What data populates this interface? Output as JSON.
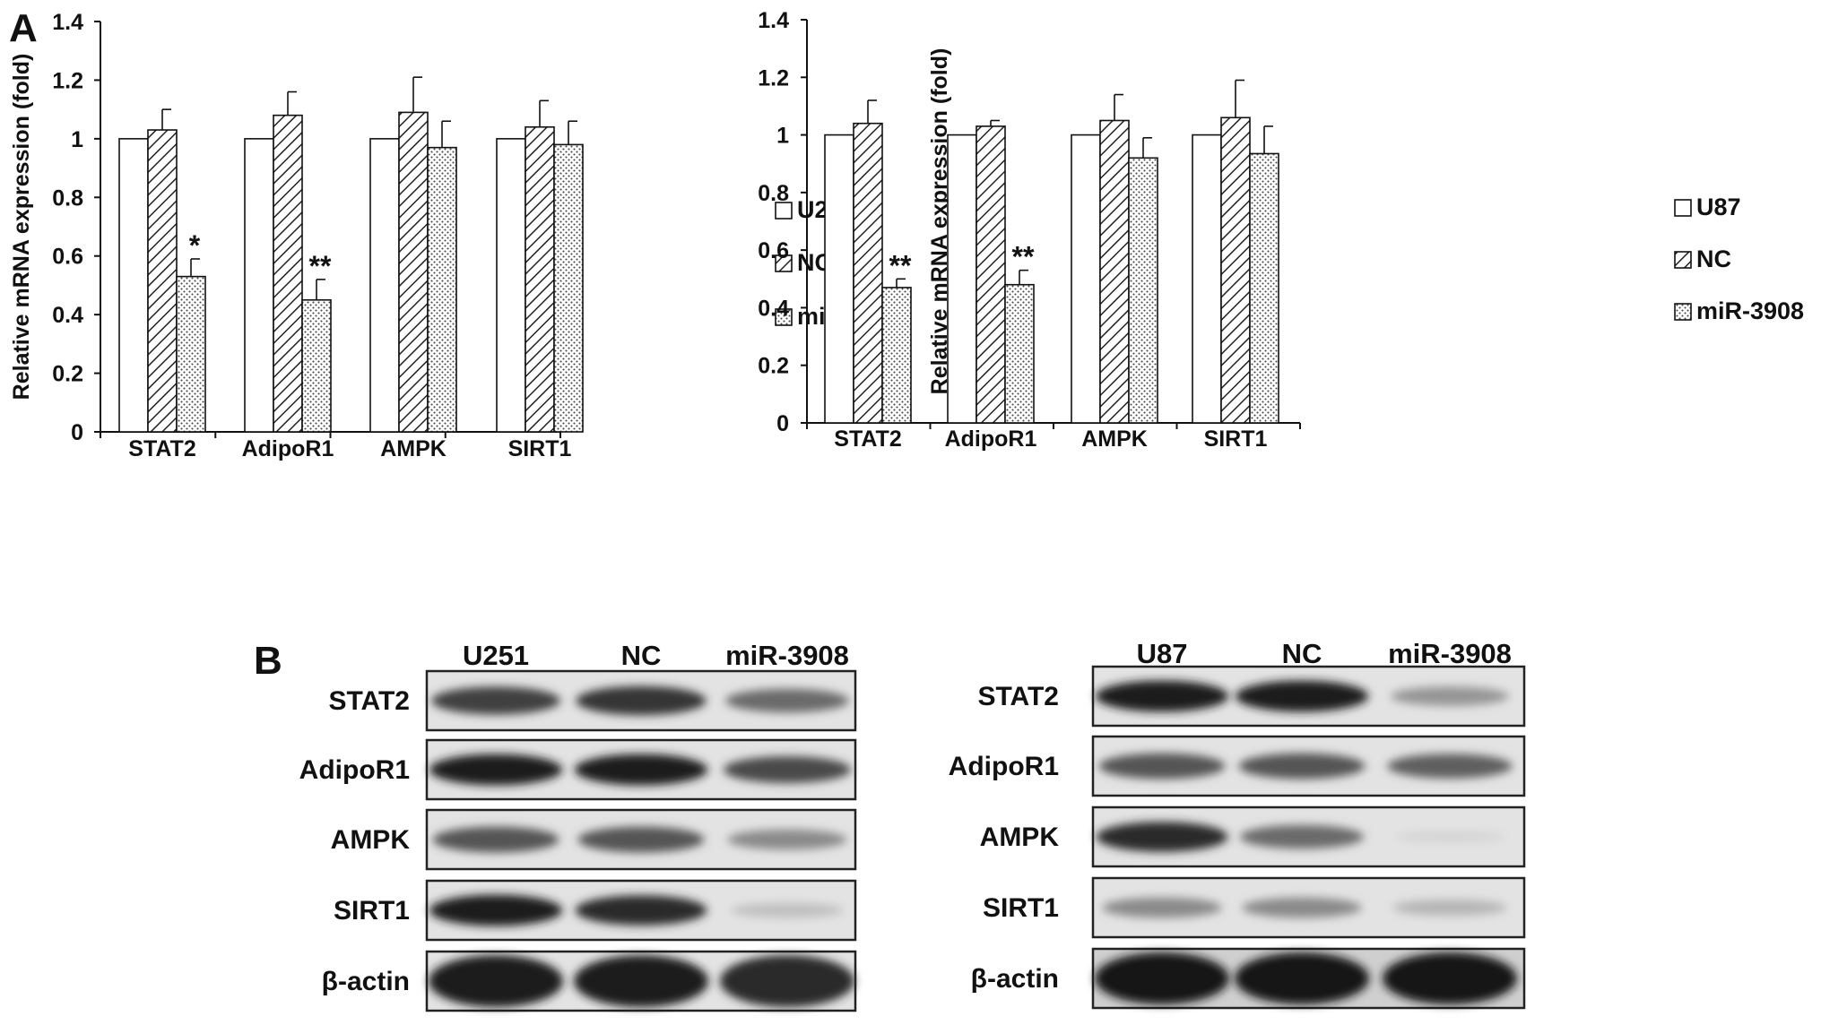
{
  "panel_labels": {
    "a": "A",
    "b": "B"
  },
  "chart_data": [
    {
      "type": "bar",
      "title": "",
      "xlabel": "",
      "ylabel": "Relative mRNA expression (fold)",
      "ylim": [
        0,
        1.4
      ],
      "yticks": [
        "0",
        "0.2",
        "0.4",
        "0.6",
        "0.8",
        "1",
        "1.2",
        "1.4"
      ],
      "categories": [
        "STAT2",
        "AdipoR1",
        "AMPK",
        "SIRT1"
      ],
      "legend_position": "right",
      "series": [
        {
          "name": "U251",
          "pattern": "white",
          "values": [
            1.0,
            1.0,
            1.0,
            1.0
          ],
          "errors": [
            0,
            0,
            0,
            0
          ]
        },
        {
          "name": "NC",
          "pattern": "hatch",
          "values": [
            1.03,
            1.08,
            1.09,
            1.04
          ],
          "errors": [
            0.07,
            0.08,
            0.12,
            0.09
          ]
        },
        {
          "name": "miR-3908",
          "pattern": "dots",
          "values": [
            0.53,
            0.45,
            0.97,
            0.98
          ],
          "errors": [
            0.06,
            0.07,
            0.09,
            0.08
          ]
        }
      ],
      "annotations": [
        {
          "category": "STAT2",
          "series": "miR-3908",
          "text": "*"
        },
        {
          "category": "AdipoR1",
          "series": "miR-3908",
          "text": "**"
        }
      ]
    },
    {
      "type": "bar",
      "title": "",
      "xlabel": "",
      "ylabel": "Relative mRNA expression (fold)",
      "ylim": [
        0,
        1.4
      ],
      "yticks": [
        "0",
        "0.2",
        "0.4",
        "0.6",
        "0.8",
        "1",
        "1.2",
        "1.4"
      ],
      "categories": [
        "STAT2",
        "AdipoR1",
        "AMPK",
        "SIRT1"
      ],
      "legend_position": "right",
      "series": [
        {
          "name": "U87",
          "pattern": "white",
          "values": [
            1.0,
            1.0,
            1.0,
            1.0
          ],
          "errors": [
            0,
            0,
            0,
            0
          ]
        },
        {
          "name": "NC",
          "pattern": "hatch",
          "values": [
            1.04,
            1.03,
            1.05,
            1.06
          ],
          "errors": [
            0.08,
            0.02,
            0.09,
            0.13
          ]
        },
        {
          "name": "miR-3908",
          "pattern": "dots",
          "values": [
            0.47,
            0.48,
            0.92,
            0.935
          ],
          "errors": [
            0.03,
            0.05,
            0.07,
            0.095
          ]
        }
      ],
      "annotations": [
        {
          "category": "STAT2",
          "series": "miR-3908",
          "text": "**"
        },
        {
          "category": "AdipoR1",
          "series": "miR-3908",
          "text": "**"
        }
      ]
    }
  ],
  "western_blots": [
    {
      "lanes": [
        "U251",
        "NC",
        "miR-3908"
      ],
      "rows": [
        {
          "label": "STAT2",
          "intensities": [
            0.8,
            0.85,
            0.6
          ]
        },
        {
          "label": "AdipoR1",
          "intensities": [
            0.95,
            0.95,
            0.75
          ]
        },
        {
          "label": "AMPK",
          "intensities": [
            0.7,
            0.7,
            0.45
          ]
        },
        {
          "label": "SIRT1",
          "intensities": [
            0.95,
            0.9,
            0.2
          ]
        },
        {
          "label": "β-actin",
          "intensities": [
            0.95,
            0.95,
            0.9
          ]
        }
      ]
    },
    {
      "lanes": [
        "U87",
        "NC",
        "miR-3908"
      ],
      "rows": [
        {
          "label": "STAT2",
          "intensities": [
            0.95,
            0.95,
            0.4
          ]
        },
        {
          "label": "AdipoR1",
          "intensities": [
            0.7,
            0.7,
            0.65
          ]
        },
        {
          "label": "AMPK",
          "intensities": [
            0.9,
            0.6,
            0.1
          ]
        },
        {
          "label": "SIRT1",
          "intensities": [
            0.45,
            0.45,
            0.25
          ]
        },
        {
          "label": "β-actin",
          "intensities": [
            1.0,
            1.0,
            1.0
          ]
        }
      ]
    }
  ]
}
